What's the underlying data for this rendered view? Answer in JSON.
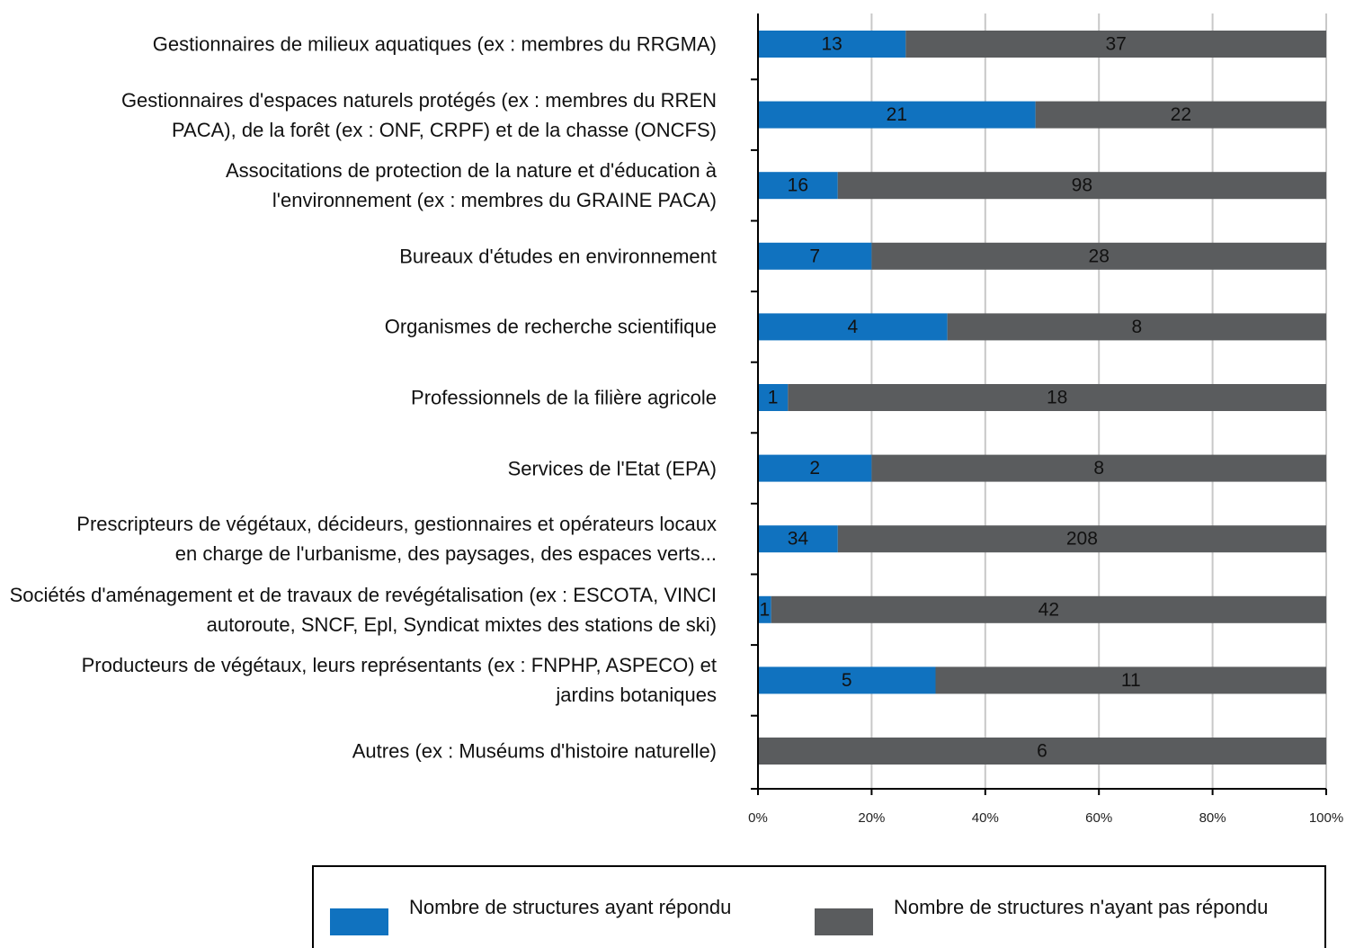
{
  "chart_data": {
    "type": "bar",
    "orientation": "horizontal",
    "stacking": "percent",
    "categories": [
      "Gestionnaires de milieux aquatiques (ex : membres du RRGMA)",
      "Gestionnaires d'espaces naturels protégés (ex : membres du RREN PACA), de la forêt (ex : ONF, CRPF) et de la chasse (ONCFS)",
      "Associtations de protection de la nature et d'éducation à l'environnement (ex : membres du GRAINE PACA)",
      "Bureaux d'études en environnement",
      "Organismes de recherche scientifique",
      "Professionnels de la filière agricole",
      "Services de l'Etat (EPA)",
      "Prescripteurs de végétaux, décideurs, gestionnaires et opérateurs locaux en charge de l'urbanisme, des paysages, des espaces verts...",
      "Sociétés d'aménagement et de travaux de revégétalisation (ex : ESCOTA, VINCI autoroute, SNCF, Epl, Syndicat mixtes des stations de ski)",
      "Producteurs de végétaux, leurs représentants (ex : FNPHP, ASPECO) et jardins botaniques",
      "Autres (ex : Muséums d'histoire naturelle)"
    ],
    "series": [
      {
        "name": "Nombre de structures ayant répondu",
        "color": "#1072bf",
        "values": [
          13,
          21,
          16,
          7,
          4,
          1,
          2,
          34,
          1,
          5,
          0
        ]
      },
      {
        "name": "Nombre de structures n'ayant pas répondu",
        "color": "#5a5c5e",
        "values": [
          37,
          22,
          98,
          28,
          8,
          18,
          8,
          208,
          42,
          11,
          6
        ]
      }
    ],
    "xlim": [
      0,
      100
    ],
    "xticks": [
      {
        "value": 0,
        "label": "0%"
      },
      {
        "value": 20,
        "label": "20%"
      },
      {
        "value": 40,
        "label": "40%"
      },
      {
        "value": 60,
        "label": "60%"
      },
      {
        "value": 80,
        "label": "80%"
      },
      {
        "value": 100,
        "label": "100%"
      }
    ],
    "grid": true,
    "legend": "bottom"
  }
}
